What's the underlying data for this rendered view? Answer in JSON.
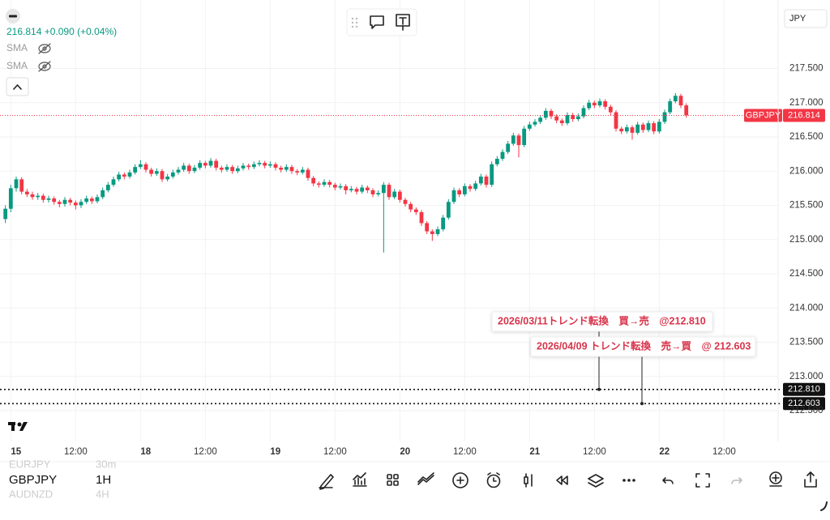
{
  "header": {
    "price_change": "216.814 +0.090 (+0.04%)",
    "indicators": [
      "SMA",
      "SMA"
    ],
    "currency": "JPY"
  },
  "chart_data": {
    "type": "candlestick",
    "x": [
      -1,
      0,
      1,
      2,
      3,
      4,
      5,
      6,
      7,
      8,
      9,
      10,
      11,
      12,
      13,
      14,
      15,
      16,
      17,
      18,
      19,
      20,
      21,
      22,
      23,
      24,
      25,
      26,
      27,
      28,
      29,
      30,
      31,
      32,
      33,
      34,
      35,
      36,
      37,
      38,
      39,
      40,
      41,
      42,
      43,
      44,
      45,
      46,
      47,
      48,
      49,
      50,
      51,
      52,
      53,
      54,
      55,
      56,
      57,
      58,
      59,
      60,
      61,
      62,
      63,
      64,
      65,
      66,
      67,
      68,
      69,
      70,
      71,
      72,
      73,
      74,
      75,
      76,
      77,
      78,
      79,
      80,
      81,
      82,
      83,
      84,
      85,
      86,
      87,
      88,
      89,
      90,
      91,
      92,
      93,
      94,
      95,
      96,
      97,
      98,
      99,
      100,
      101,
      102,
      103,
      104,
      105,
      106,
      107,
      108,
      109,
      110,
      111,
      112,
      113,
      114,
      115,
      116,
      117,
      118,
      119,
      120,
      121,
      122,
      123,
      124,
      125
    ],
    "candles": [
      [
        215.3,
        215.5,
        215.24,
        215.45
      ],
      [
        215.45,
        215.8,
        215.4,
        215.75
      ],
      [
        215.75,
        215.92,
        215.7,
        215.88
      ],
      [
        215.88,
        215.91,
        215.66,
        215.7
      ],
      [
        215.7,
        215.74,
        215.62,
        215.66
      ],
      [
        215.66,
        215.7,
        215.58,
        215.62
      ],
      [
        215.62,
        215.68,
        215.58,
        215.64
      ],
      [
        215.64,
        215.67,
        215.54,
        215.58
      ],
      [
        215.58,
        215.64,
        215.54,
        215.6
      ],
      [
        215.6,
        215.63,
        215.51,
        215.55
      ],
      [
        215.55,
        215.58,
        215.47,
        215.52
      ],
      [
        215.52,
        215.62,
        215.48,
        215.58
      ],
      [
        215.58,
        215.61,
        215.5,
        215.54
      ],
      [
        215.54,
        215.57,
        215.44,
        215.5
      ],
      [
        215.5,
        215.59,
        215.46,
        215.55
      ],
      [
        215.55,
        215.64,
        215.52,
        215.6
      ],
      [
        215.6,
        215.63,
        215.52,
        215.56
      ],
      [
        215.56,
        215.66,
        215.53,
        215.62
      ],
      [
        215.62,
        215.76,
        215.59,
        215.72
      ],
      [
        215.72,
        215.84,
        215.69,
        215.8
      ],
      [
        215.8,
        215.92,
        215.77,
        215.88
      ],
      [
        215.88,
        215.99,
        215.85,
        215.95
      ],
      [
        215.95,
        215.98,
        215.88,
        215.92
      ],
      [
        215.92,
        216.02,
        215.89,
        215.98
      ],
      [
        215.98,
        216.1,
        215.95,
        216.06
      ],
      [
        216.06,
        216.16,
        216.03,
        216.1
      ],
      [
        216.1,
        216.13,
        215.98,
        216.02
      ],
      [
        216.02,
        216.05,
        215.92,
        215.96
      ],
      [
        215.96,
        216.04,
        215.93,
        216.0
      ],
      [
        216.0,
        216.03,
        215.84,
        215.88
      ],
      [
        215.88,
        215.96,
        215.85,
        215.92
      ],
      [
        215.92,
        216.02,
        215.89,
        215.98
      ],
      [
        215.98,
        216.06,
        215.95,
        216.02
      ],
      [
        216.02,
        216.12,
        215.99,
        216.08
      ],
      [
        216.08,
        216.11,
        215.96,
        216.0
      ],
      [
        216.0,
        216.09,
        215.97,
        216.05
      ],
      [
        216.05,
        216.16,
        216.02,
        216.12
      ],
      [
        216.12,
        216.15,
        216.04,
        216.08
      ],
      [
        216.08,
        216.19,
        216.05,
        216.15
      ],
      [
        216.15,
        216.18,
        216.01,
        216.05
      ],
      [
        216.05,
        216.08,
        215.98,
        216.02
      ],
      [
        216.02,
        216.1,
        215.99,
        216.06
      ],
      [
        216.06,
        216.09,
        215.96,
        216.0
      ],
      [
        216.0,
        216.08,
        215.97,
        216.04
      ],
      [
        216.04,
        216.12,
        216.01,
        216.08
      ],
      [
        216.08,
        216.11,
        216.02,
        216.06
      ],
      [
        216.06,
        216.14,
        216.03,
        216.1
      ],
      [
        216.1,
        216.16,
        216.07,
        216.12
      ],
      [
        216.12,
        216.15,
        216.04,
        216.08
      ],
      [
        216.08,
        216.14,
        216.05,
        216.1
      ],
      [
        216.1,
        216.13,
        216.01,
        216.05
      ],
      [
        216.05,
        216.08,
        215.98,
        216.02
      ],
      [
        216.02,
        216.1,
        215.99,
        216.06
      ],
      [
        216.06,
        216.09,
        215.96,
        216.0
      ],
      [
        216.0,
        216.03,
        215.94,
        215.98
      ],
      [
        215.98,
        216.06,
        215.95,
        216.02
      ],
      [
        216.02,
        216.05,
        215.86,
        215.9
      ],
      [
        215.9,
        215.93,
        215.78,
        215.82
      ],
      [
        215.82,
        215.85,
        215.76,
        215.8
      ],
      [
        215.8,
        215.88,
        215.77,
        215.84
      ],
      [
        215.84,
        215.87,
        215.76,
        215.8
      ],
      [
        215.8,
        215.83,
        215.72,
        215.76
      ],
      [
        215.76,
        215.82,
        215.73,
        215.78
      ],
      [
        215.78,
        215.81,
        215.66,
        215.72
      ],
      [
        215.72,
        215.78,
        215.69,
        215.74
      ],
      [
        215.74,
        215.77,
        215.66,
        215.7
      ],
      [
        215.7,
        215.8,
        215.67,
        215.76
      ],
      [
        215.76,
        215.79,
        215.68,
        215.72
      ],
      [
        215.72,
        215.75,
        215.62,
        215.66
      ],
      [
        215.66,
        215.72,
        215.63,
        215.68
      ],
      [
        215.68,
        215.84,
        214.81,
        215.8
      ],
      [
        215.8,
        215.83,
        215.58,
        215.62
      ],
      [
        215.62,
        215.74,
        215.59,
        215.7
      ],
      [
        215.7,
        215.73,
        215.54,
        215.58
      ],
      [
        215.58,
        215.61,
        215.48,
        215.52
      ],
      [
        215.52,
        215.55,
        215.4,
        215.44
      ],
      [
        215.44,
        215.47,
        215.36,
        215.4
      ],
      [
        215.4,
        215.43,
        215.2,
        215.24
      ],
      [
        215.24,
        215.27,
        215.08,
        215.12
      ],
      [
        215.12,
        215.15,
        214.98,
        215.08
      ],
      [
        215.08,
        215.19,
        215.05,
        215.15
      ],
      [
        215.15,
        215.36,
        215.12,
        215.32
      ],
      [
        215.32,
        215.59,
        215.29,
        215.55
      ],
      [
        215.55,
        215.76,
        215.52,
        215.72
      ],
      [
        215.72,
        215.75,
        215.62,
        215.66
      ],
      [
        215.66,
        215.82,
        215.63,
        215.78
      ],
      [
        215.78,
        215.81,
        215.7,
        215.74
      ],
      [
        215.74,
        215.86,
        215.71,
        215.82
      ],
      [
        215.82,
        215.96,
        215.79,
        215.92
      ],
      [
        215.92,
        215.95,
        215.76,
        215.8
      ],
      [
        215.8,
        216.14,
        215.77,
        216.1
      ],
      [
        216.1,
        216.22,
        216.07,
        216.18
      ],
      [
        216.18,
        216.32,
        216.15,
        216.28
      ],
      [
        216.28,
        216.44,
        216.25,
        216.4
      ],
      [
        216.4,
        216.56,
        216.37,
        216.52
      ],
      [
        216.52,
        216.55,
        216.2,
        216.38
      ],
      [
        216.38,
        216.66,
        216.35,
        216.62
      ],
      [
        216.62,
        216.72,
        216.59,
        216.68
      ],
      [
        216.68,
        216.76,
        216.65,
        216.72
      ],
      [
        216.72,
        216.82,
        216.69,
        216.78
      ],
      [
        216.78,
        216.92,
        216.75,
        216.88
      ],
      [
        216.88,
        216.91,
        216.76,
        216.8
      ],
      [
        216.8,
        216.83,
        216.7,
        216.74
      ],
      [
        216.74,
        216.77,
        216.66,
        216.7
      ],
      [
        216.7,
        216.86,
        216.67,
        216.82
      ],
      [
        216.82,
        216.85,
        216.72,
        216.76
      ],
      [
        216.76,
        216.84,
        216.73,
        216.8
      ],
      [
        216.8,
        216.96,
        216.77,
        216.92
      ],
      [
        216.92,
        217.04,
        216.89,
        217.0
      ],
      [
        217.0,
        217.03,
        216.92,
        216.96
      ],
      [
        216.96,
        217.06,
        216.93,
        217.02
      ],
      [
        217.02,
        217.05,
        216.9,
        216.94
      ],
      [
        216.94,
        216.97,
        216.82,
        216.86
      ],
      [
        216.86,
        216.89,
        216.58,
        216.62
      ],
      [
        216.62,
        216.65,
        216.54,
        216.58
      ],
      [
        216.58,
        216.68,
        216.55,
        216.64
      ],
      [
        216.64,
        216.67,
        216.46,
        216.56
      ],
      [
        216.56,
        216.72,
        216.53,
        216.68
      ],
      [
        216.68,
        216.71,
        216.56,
        216.6
      ],
      [
        216.6,
        216.74,
        216.57,
        216.7
      ],
      [
        216.7,
        216.73,
        216.54,
        216.58
      ],
      [
        216.58,
        216.76,
        216.55,
        216.72
      ],
      [
        216.72,
        216.9,
        216.69,
        216.86
      ],
      [
        216.86,
        217.06,
        216.83,
        217.02
      ],
      [
        217.02,
        217.14,
        216.99,
        217.1
      ],
      [
        217.1,
        217.13,
        216.92,
        216.96
      ],
      [
        216.96,
        216.99,
        216.78,
        216.814
      ]
    ],
    "up_color": "#089981",
    "down_color": "#f23645",
    "xlim": [
      -2,
      142
    ],
    "ylim": [
      212.05,
      218.5
    ],
    "xticks": [
      {
        "value": 0,
        "label": "15"
      },
      {
        "value": 12,
        "label": "12:00"
      },
      {
        "value": 24,
        "label": "18"
      },
      {
        "value": 36,
        "label": "12:00"
      },
      {
        "value": 48,
        "label": "19"
      },
      {
        "value": 60,
        "label": "12:00"
      },
      {
        "value": 72,
        "label": "20"
      },
      {
        "value": 84,
        "label": "12:00"
      },
      {
        "value": 96,
        "label": "21"
      },
      {
        "value": 108,
        "label": "12:00"
      },
      {
        "value": 120,
        "label": "22"
      },
      {
        "value": 132,
        "label": "12:00"
      }
    ],
    "yticks": [
      {
        "value": 217.5,
        "label": "217.500"
      },
      {
        "value": 217,
        "label": "217.000"
      },
      {
        "value": 216.5,
        "label": "216.500"
      },
      {
        "value": 216,
        "label": "216.000"
      },
      {
        "value": 215.5,
        "label": "215.500"
      },
      {
        "value": 215,
        "label": "215.000"
      },
      {
        "value": 214.5,
        "label": "214.500"
      },
      {
        "value": 214,
        "label": "214.000"
      },
      {
        "value": 213.5,
        "label": "213.500"
      },
      {
        "value": 213,
        "label": "213.000"
      },
      {
        "value": 212.5,
        "label": "212.500"
      }
    ],
    "grid": true,
    "last_price": {
      "symbol": "GBPJPY",
      "value": 216.814
    },
    "price_lines": [
      {
        "value": 212.81,
        "label": "212.810"
      },
      {
        "value": 212.603,
        "label": "212.603"
      }
    ],
    "annotations": [
      "2026/03/11トレンド転換　買→売　@212.810",
      "2026/04/09 トレンド転換　売→買　@ 212.603"
    ]
  },
  "watchlist": [
    {
      "symbol": "EURJPY",
      "interval": "30m"
    },
    {
      "symbol": "GBPJPY",
      "interval": "1H"
    },
    {
      "symbol": "AUDNZD",
      "interval": "4H"
    }
  ]
}
